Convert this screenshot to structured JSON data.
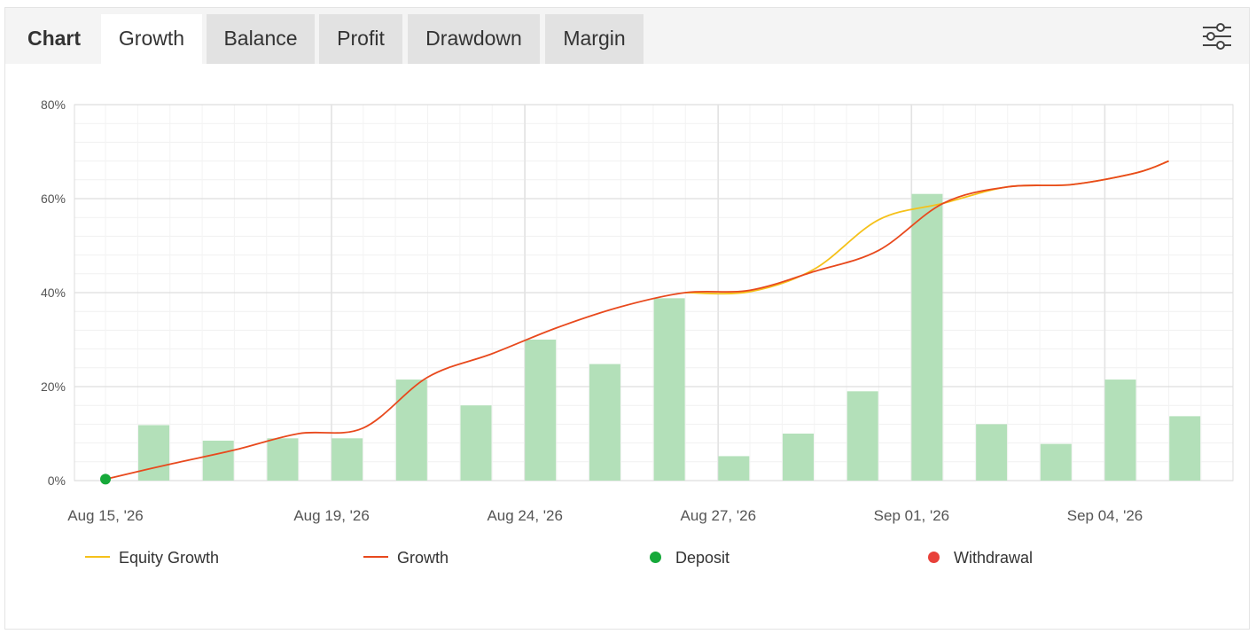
{
  "tabs": {
    "label": "Chart",
    "items": [
      {
        "label": "Growth",
        "active": true
      },
      {
        "label": "Balance",
        "active": false
      },
      {
        "label": "Profit",
        "active": false
      },
      {
        "label": "Drawdown",
        "active": false
      },
      {
        "label": "Margin",
        "active": false
      }
    ],
    "settings_icon": "sliders-icon"
  },
  "legend": {
    "equity_growth": "Equity Growth",
    "growth": "Growth",
    "deposit": "Deposit",
    "withdrawal": "Withdrawal"
  },
  "colors": {
    "equity_growth": "#f5c11a",
    "growth": "#e8491d",
    "deposit": "#16a93a",
    "withdrawal": "#e8413a",
    "bars": "#b3e0b9"
  },
  "chart_data": {
    "type": "line",
    "y_tick_labels": [
      "0%",
      "20%",
      "40%",
      "60%",
      "80%"
    ],
    "ylim": [
      0,
      80
    ],
    "x_tick_labels": [
      {
        "label": "Aug 15, '26",
        "day": 0
      },
      {
        "label": "Aug 19, '26",
        "day": 3
      },
      {
        "label": "Aug 24, '26",
        "day": 6
      },
      {
        "label": "Aug 27, '26",
        "day": 9
      },
      {
        "label": "Sep 01, '26",
        "day": 12
      },
      {
        "label": "Sep 04, '26",
        "day": 15
      }
    ],
    "grid": true,
    "legend_position": "bottom",
    "bars": {
      "x": [
        0.75,
        1.75,
        2.75,
        3.75,
        4.75,
        5.75,
        6.75,
        7.75,
        8.75,
        9.75,
        10.75,
        11.75,
        12.75,
        13.75,
        14.75,
        15.75,
        16.75
      ],
      "values": [
        11.8,
        8.5,
        9.0,
        9.0,
        21.5,
        16.0,
        30.0,
        24.8,
        38.8,
        5.2,
        10.0,
        19.0,
        61.0,
        12.0,
        7.8,
        21.5,
        13.7
      ]
    },
    "series": [
      {
        "name": "Growth",
        "x": [
          0,
          1,
          2,
          3,
          4,
          5,
          6,
          7,
          8,
          9,
          10,
          11,
          12,
          13,
          14,
          15,
          16,
          16.5
        ],
        "y": [
          0.3,
          3.5,
          6.5,
          10.0,
          11.2,
          22.0,
          27.0,
          32.5,
          37.0,
          40.0,
          40.5,
          44.5,
          49.0,
          59.0,
          62.5,
          63.0,
          65.5,
          68.0
        ]
      },
      {
        "name": "Equity Growth",
        "x": [
          9,
          10,
          11,
          12,
          13,
          14,
          15,
          16,
          16.5
        ],
        "y": [
          40.0,
          40.2,
          45.0,
          55.5,
          59.0,
          62.5,
          63.0,
          65.5,
          68.0
        ]
      }
    ],
    "deposits": [
      {
        "x": 0,
        "y": 0.3
      }
    ],
    "withdrawals": []
  }
}
